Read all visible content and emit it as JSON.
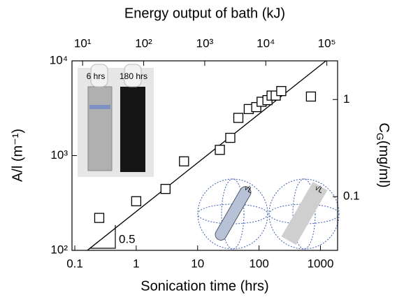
{
  "chart_data": {
    "type": "scatter",
    "xlabel": "Sonication time (hrs)",
    "ylabel": "A/l (m⁻¹)",
    "x2label": "Energy output of bath (kJ)",
    "y2label": {
      "symbol": "C",
      "subscript": "G",
      "unit": "(mg/ml)"
    },
    "log_scale": true,
    "color": "#000000",
    "xlim": [
      0.09,
      1900
    ],
    "xticks": [
      0.1,
      1,
      10,
      100,
      1000
    ],
    "ylim": [
      100,
      10000
    ],
    "yticks": [
      {
        "value": 100,
        "label": "10²"
      },
      {
        "value": 1000,
        "label": "10³"
      },
      {
        "value": 10000,
        "label": "10⁴"
      }
    ],
    "x2lim": [
      6.7,
      150000
    ],
    "x2ticks": [
      {
        "value": 10,
        "label": "10¹"
      },
      {
        "value": 100,
        "label": "10²"
      },
      {
        "value": 1000,
        "label": "10³"
      },
      {
        "value": 10000,
        "label": "10⁴"
      },
      {
        "value": 100000,
        "label": "10⁵"
      }
    ],
    "y2lim": [
      0.028,
      2.5
    ],
    "y2ticks": [
      0.1,
      1
    ],
    "x": [
      0.25,
      1,
      3,
      6,
      23,
      34,
      46,
      68,
      90,
      110,
      137,
      160,
      187,
      230,
      700
    ],
    "values": [
      220,
      330,
      445,
      870,
      1150,
      1540,
      2500,
      3100,
      3250,
      3700,
      3850,
      4300,
      4300,
      4800,
      4200
    ],
    "fit": {
      "x": [
        0.16,
        1230
      ],
      "values": [
        100,
        10000
      ]
    },
    "slope_label": "0.5",
    "inset_labels": [
      "6 hrs",
      "180 hrs"
    ],
    "sphere_labels": [
      "√L",
      "√L"
    ]
  }
}
